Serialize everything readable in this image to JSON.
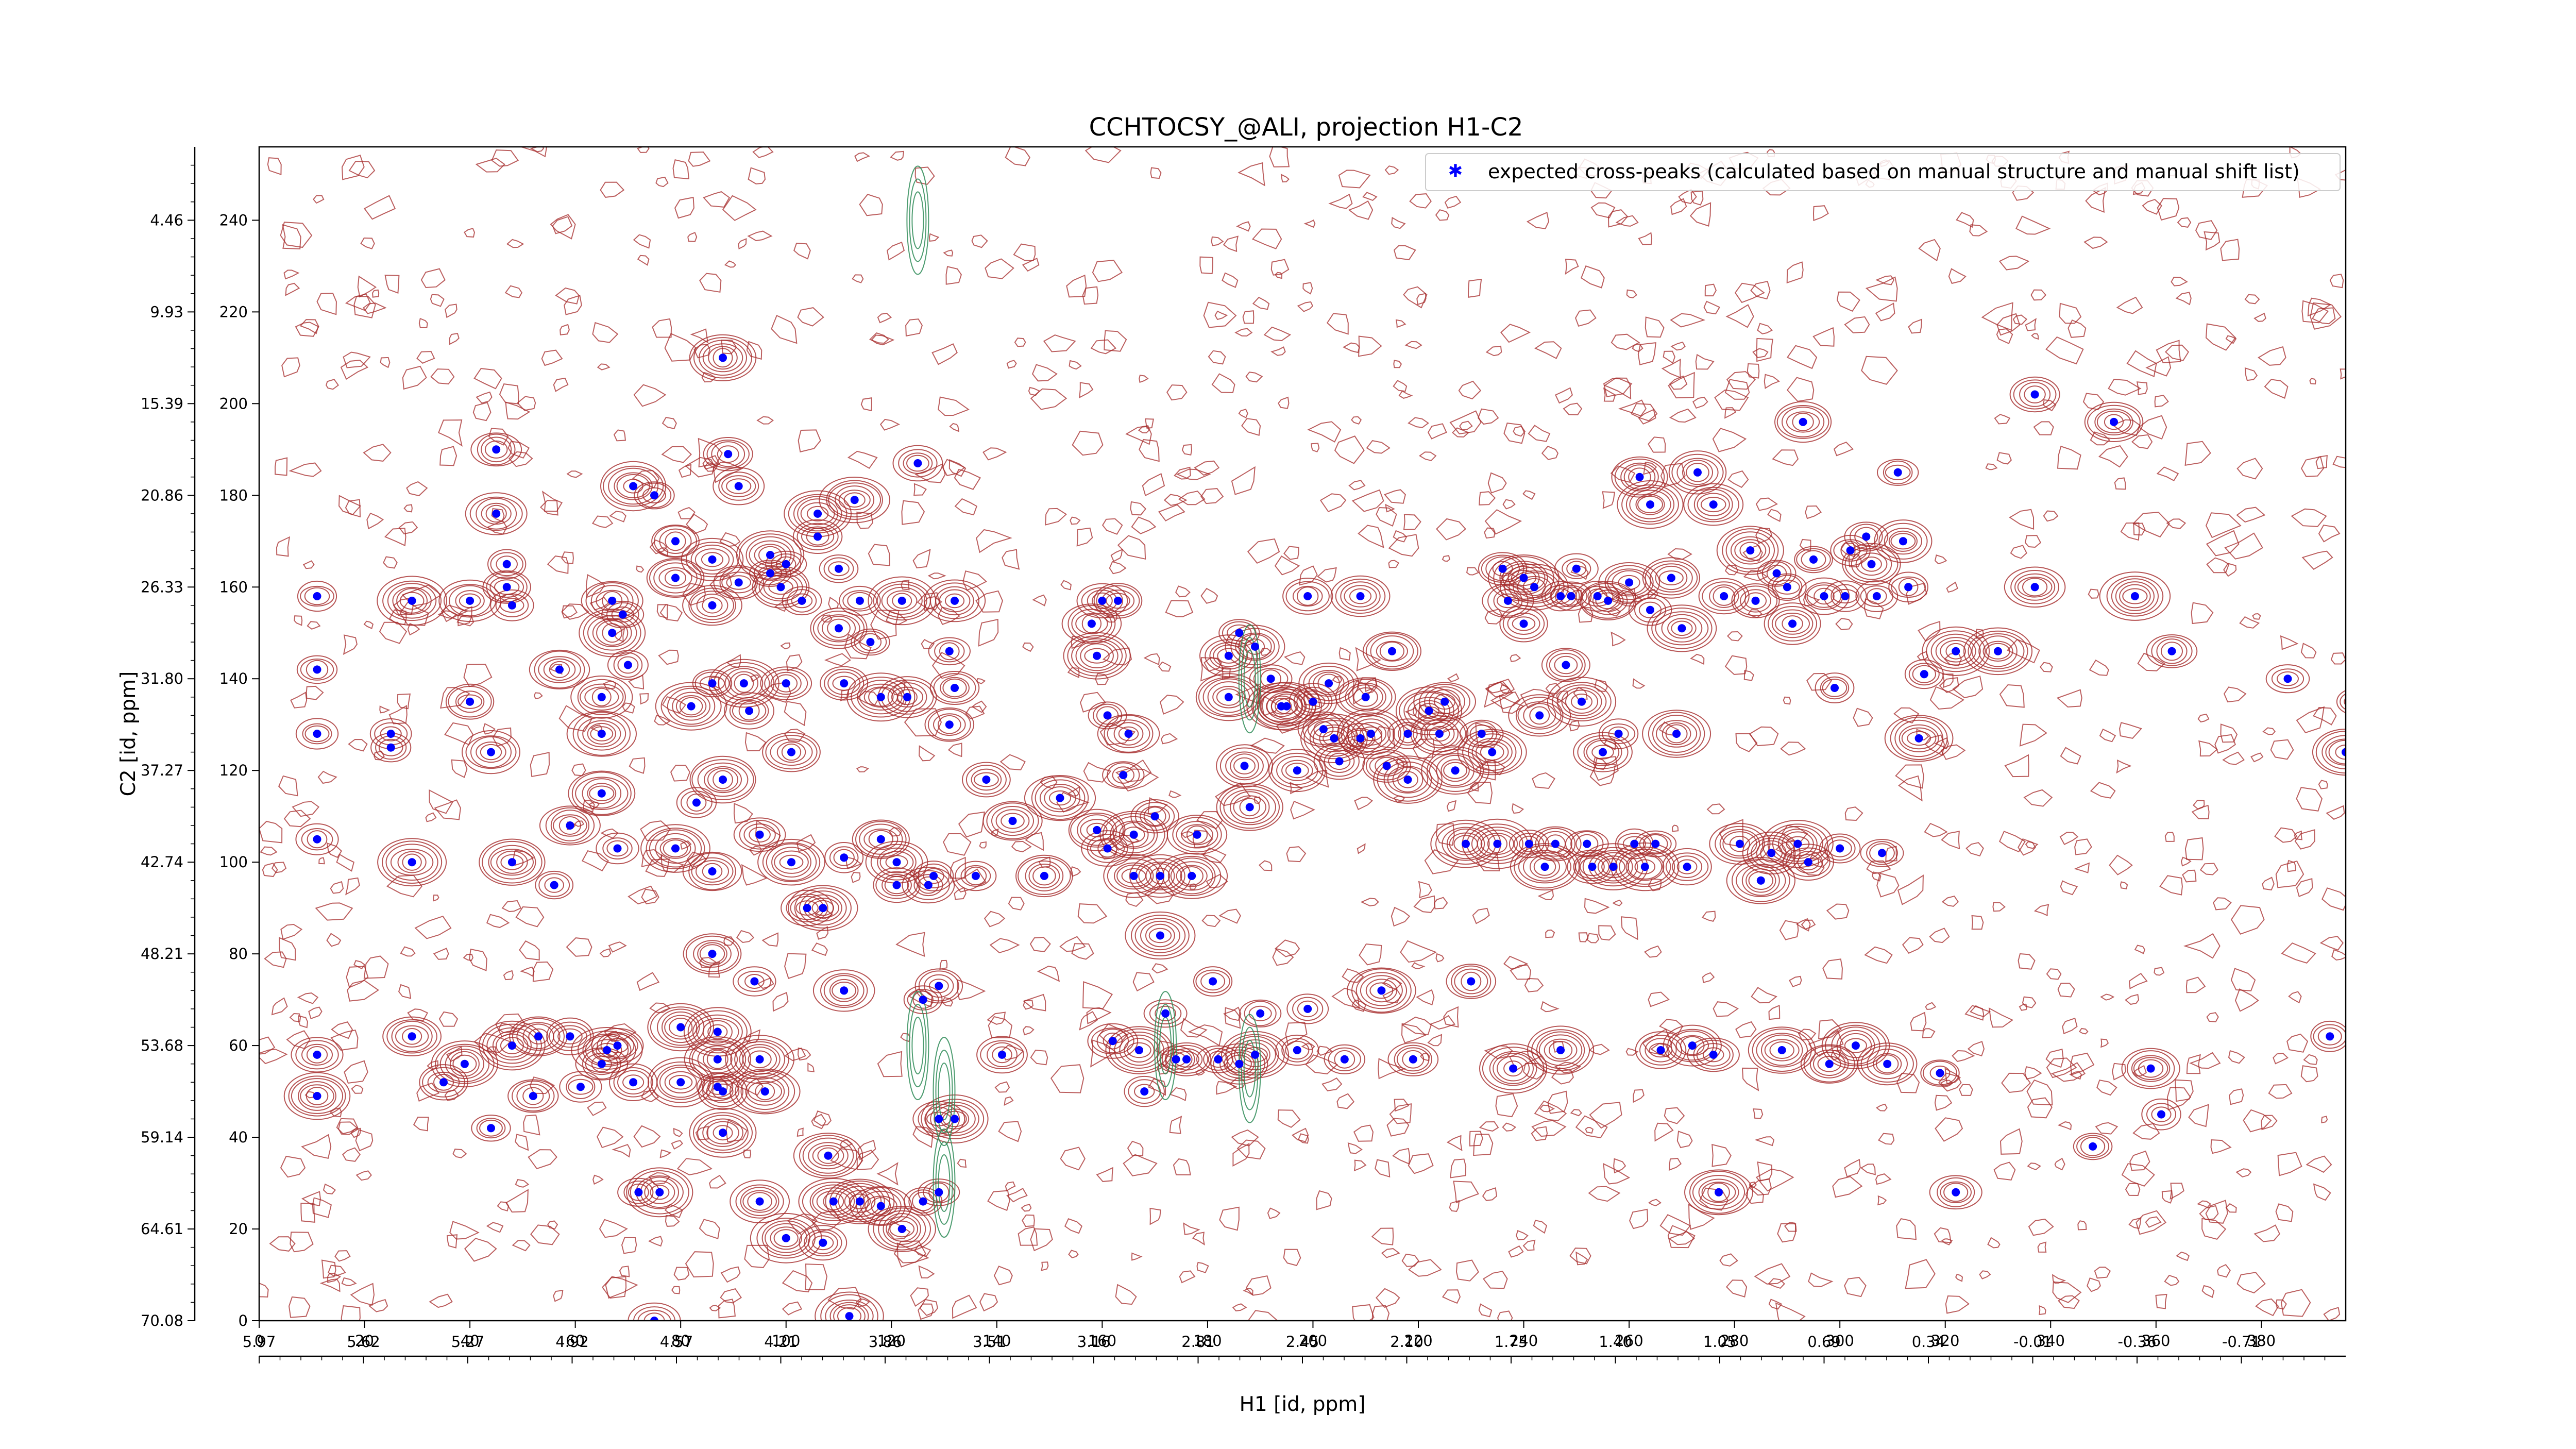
{
  "chart_data": {
    "type": "scatter",
    "title": "CCHTOCSY_@ALI, projection H1-C2",
    "xlabel": "H1 [id, ppm]",
    "ylabel": "C2 [id, ppm]",
    "xlim": [
      0,
      396
    ],
    "ylim": [
      0,
      256
    ],
    "x_ticks": [
      "0",
      "20",
      "40",
      "60",
      "80",
      "100",
      "120",
      "140",
      "160",
      "180",
      "200",
      "220",
      "240",
      "260",
      "280",
      "300",
      "320",
      "340",
      "360",
      "380"
    ],
    "x_ppm_ticks": [
      "5.97",
      "5.62",
      "5.27",
      "4.92",
      "4.57",
      "4.21",
      "3.86",
      "3.51",
      "3.16",
      "2.81",
      "2.45",
      "2.10",
      "1.75",
      "1.40",
      "1.05",
      "0.69",
      "0.34",
      "-0.01",
      "-0.36",
      "-0.71"
    ],
    "y_ticks": [
      "0",
      "20",
      "40",
      "60",
      "80",
      "100",
      "120",
      "140",
      "160",
      "180",
      "200",
      "220",
      "240"
    ],
    "y_ppm_ticks": [
      "70.08",
      "64.61",
      "59.14",
      "53.68",
      "48.21",
      "42.74",
      "37.27",
      "31.80",
      "26.33",
      "20.86",
      "15.39",
      "9.93",
      "4.46"
    ],
    "grid": false,
    "legend_position": "top-right",
    "colors": {
      "expected_marker": "#0000ff",
      "positive_contour": "#a52a2a",
      "negative_contour": "#2e8b57"
    },
    "series": [
      {
        "name": "expected cross-peaks (calculated based on manual structure and manual shift list)",
        "points": [
          [
            88,
            210
          ],
          [
            45,
            190
          ],
          [
            11,
            158
          ],
          [
            11,
            142
          ],
          [
            11,
            128
          ],
          [
            11,
            105
          ],
          [
            11,
            58
          ],
          [
            11,
            49
          ],
          [
            25,
            125
          ],
          [
            25,
            128
          ],
          [
            29,
            100
          ],
          [
            29,
            62
          ],
          [
            29,
            157
          ],
          [
            35,
            52
          ],
          [
            39,
            56
          ],
          [
            40,
            157
          ],
          [
            40,
            135
          ],
          [
            44,
            124
          ],
          [
            44,
            42
          ],
          [
            45,
            176
          ],
          [
            47,
            165
          ],
          [
            47,
            160
          ],
          [
            48,
            100
          ],
          [
            48,
            60
          ],
          [
            53,
            62
          ],
          [
            52,
            49
          ],
          [
            48,
            156
          ],
          [
            56,
            95
          ],
          [
            57,
            142
          ],
          [
            59,
            108
          ],
          [
            59,
            62
          ],
          [
            61,
            51
          ],
          [
            65,
            136
          ],
          [
            65,
            128
          ],
          [
            65,
            115
          ],
          [
            65,
            56
          ],
          [
            66,
            59
          ],
          [
            67,
            157
          ],
          [
            67,
            150
          ],
          [
            68,
            103
          ],
          [
            68,
            60
          ],
          [
            69,
            154
          ],
          [
            70,
            143
          ],
          [
            71,
            182
          ],
          [
            71,
            52
          ],
          [
            72,
            28
          ],
          [
            75,
            180
          ],
          [
            76,
            28
          ],
          [
            75,
            0
          ],
          [
            79,
            170
          ],
          [
            79,
            162
          ],
          [
            79,
            103
          ],
          [
            80,
            64
          ],
          [
            80,
            52
          ],
          [
            82,
            134
          ],
          [
            83,
            113
          ],
          [
            86,
            166
          ],
          [
            86,
            156
          ],
          [
            86,
            139
          ],
          [
            86,
            98
          ],
          [
            86,
            80
          ],
          [
            87,
            63
          ],
          [
            87,
            57
          ],
          [
            87,
            51
          ],
          [
            88,
            118
          ],
          [
            88,
            50
          ],
          [
            88,
            41
          ],
          [
            89,
            189
          ],
          [
            91,
            182
          ],
          [
            91,
            161
          ],
          [
            92,
            139
          ],
          [
            93,
            133
          ],
          [
            94,
            74
          ],
          [
            95,
            57
          ],
          [
            95,
            106
          ],
          [
            95,
            26
          ],
          [
            96,
            50
          ],
          [
            97,
            167
          ],
          [
            97,
            163
          ],
          [
            99,
            160
          ],
          [
            100,
            165
          ],
          [
            100,
            139
          ],
          [
            100,
            18
          ],
          [
            101,
            124
          ],
          [
            101,
            100
          ],
          [
            103,
            157
          ],
          [
            104,
            90
          ],
          [
            106,
            176
          ],
          [
            106,
            171
          ],
          [
            107,
            90
          ],
          [
            107,
            17
          ],
          [
            108,
            36
          ],
          [
            109,
            26
          ],
          [
            110,
            164
          ],
          [
            110,
            151
          ],
          [
            111,
            139
          ],
          [
            111,
            101
          ],
          [
            111,
            72
          ],
          [
            112,
            1
          ],
          [
            113,
            179
          ],
          [
            114,
            26
          ],
          [
            114,
            157
          ],
          [
            116,
            148
          ],
          [
            118,
            136
          ],
          [
            118,
            105
          ],
          [
            118,
            25
          ],
          [
            121,
            100
          ],
          [
            121,
            95
          ],
          [
            122,
            157
          ],
          [
            123,
            136
          ],
          [
            122,
            20
          ],
          [
            125,
            187
          ],
          [
            126,
            70
          ],
          [
            126,
            26
          ],
          [
            127,
            95
          ],
          [
            128,
            97
          ],
          [
            129,
            73
          ],
          [
            129,
            44
          ],
          [
            129,
            28
          ],
          [
            131,
            130
          ],
          [
            132,
            157
          ],
          [
            131,
            146
          ],
          [
            132,
            138
          ],
          [
            136,
            97
          ],
          [
            132,
            44
          ],
          [
            138,
            118
          ],
          [
            141,
            58
          ],
          [
            143,
            109
          ],
          [
            149,
            97
          ],
          [
            152,
            114
          ],
          [
            158,
            152
          ],
          [
            159,
            145
          ],
          [
            160,
            157
          ],
          [
            161,
            132
          ],
          [
            159,
            107
          ],
          [
            161,
            103
          ],
          [
            162,
            61
          ],
          [
            163,
            157
          ],
          [
            164,
            119
          ],
          [
            165,
            128
          ],
          [
            166,
            106
          ],
          [
            166,
            97
          ],
          [
            167,
            59
          ],
          [
            168,
            50
          ],
          [
            170,
            110
          ],
          [
            171,
            97
          ],
          [
            171,
            84
          ],
          [
            172,
            67
          ],
          [
            174,
            57
          ],
          [
            176,
            57
          ],
          [
            177,
            97
          ],
          [
            178,
            106
          ],
          [
            181,
            74
          ],
          [
            182,
            57
          ],
          [
            184,
            145
          ],
          [
            184,
            136
          ],
          [
            186,
            150
          ],
          [
            186,
            56
          ],
          [
            187,
            121
          ],
          [
            188,
            112
          ],
          [
            189,
            147
          ],
          [
            189,
            58
          ],
          [
            190,
            67
          ],
          [
            192,
            140
          ],
          [
            194,
            134
          ],
          [
            195,
            134
          ],
          [
            197,
            120
          ],
          [
            197,
            59
          ],
          [
            199,
            68
          ],
          [
            199,
            158
          ],
          [
            200,
            135
          ],
          [
            202,
            129
          ],
          [
            203,
            139
          ],
          [
            204,
            127
          ],
          [
            205,
            122
          ],
          [
            206,
            57
          ],
          [
            209,
            127
          ],
          [
            209,
            158
          ],
          [
            210,
            136
          ],
          [
            211,
            128
          ],
          [
            213,
            72
          ],
          [
            214,
            121
          ],
          [
            215,
            146
          ],
          [
            218,
            128
          ],
          [
            218,
            118
          ],
          [
            219,
            57
          ],
          [
            222,
            133
          ],
          [
            224,
            128
          ],
          [
            225,
            135
          ],
          [
            227,
            120
          ],
          [
            229,
            104
          ],
          [
            230,
            74
          ],
          [
            232,
            128
          ],
          [
            234,
            124
          ],
          [
            235,
            104
          ],
          [
            236,
            164
          ],
          [
            237,
            157
          ],
          [
            238,
            55
          ],
          [
            240,
            162
          ],
          [
            240,
            152
          ],
          [
            241,
            104
          ],
          [
            242,
            160
          ],
          [
            243,
            132
          ],
          [
            244,
            99
          ],
          [
            246,
            104
          ],
          [
            247,
            158
          ],
          [
            247,
            59
          ],
          [
            248,
            143
          ],
          [
            249,
            158
          ],
          [
            250,
            164
          ],
          [
            251,
            135
          ],
          [
            252,
            104
          ],
          [
            253,
            99
          ],
          [
            254,
            158
          ],
          [
            255,
            124
          ],
          [
            256,
            157
          ],
          [
            257,
            99
          ],
          [
            258,
            128
          ],
          [
            260,
            161
          ],
          [
            261,
            104
          ],
          [
            262,
            184
          ],
          [
            263,
            99
          ],
          [
            264,
            155
          ],
          [
            264,
            178
          ],
          [
            265,
            104
          ],
          [
            266,
            59
          ],
          [
            268,
            162
          ],
          [
            269,
            128
          ],
          [
            270,
            151
          ],
          [
            271,
            99
          ],
          [
            272,
            60
          ],
          [
            273,
            185
          ],
          [
            276,
            178
          ],
          [
            276,
            58
          ],
          [
            277,
            28
          ],
          [
            278,
            158
          ],
          [
            281,
            104
          ],
          [
            283,
            168
          ],
          [
            284,
            157
          ],
          [
            285,
            96
          ],
          [
            287,
            102
          ],
          [
            288,
            163
          ],
          [
            289,
            59
          ],
          [
            290,
            160
          ],
          [
            291,
            152
          ],
          [
            292,
            104
          ],
          [
            293,
            196
          ],
          [
            294,
            100
          ],
          [
            295,
            166
          ],
          [
            297,
            158
          ],
          [
            298,
            56
          ],
          [
            299,
            138
          ],
          [
            300,
            103
          ],
          [
            301,
            158
          ],
          [
            302,
            168
          ],
          [
            303,
            60
          ],
          [
            305,
            171
          ],
          [
            306,
            165
          ],
          [
            307,
            158
          ],
          [
            308,
            102
          ],
          [
            309,
            56
          ],
          [
            311,
            185
          ],
          [
            312,
            170
          ],
          [
            313,
            160
          ],
          [
            315,
            127
          ],
          [
            316,
            141
          ],
          [
            319,
            54
          ],
          [
            322,
            146
          ],
          [
            322,
            28
          ],
          [
            330,
            146
          ],
          [
            337,
            202
          ],
          [
            337,
            160
          ],
          [
            348,
            38
          ],
          [
            352,
            196
          ],
          [
            356,
            158
          ],
          [
            359,
            55
          ],
          [
            361,
            45
          ],
          [
            363,
            146
          ],
          [
            385,
            140
          ],
          [
            393,
            62
          ],
          [
            398,
            135
          ],
          [
            396,
            124
          ]
        ]
      }
    ]
  }
}
